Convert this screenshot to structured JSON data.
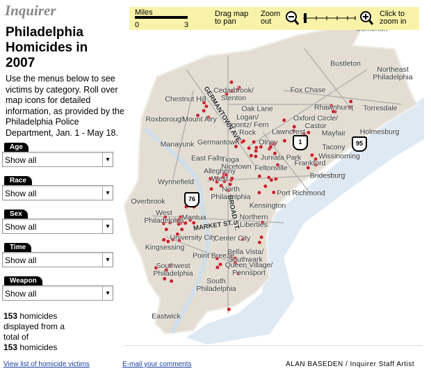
{
  "header": {
    "logo": "Inquirer",
    "title": "Philadelphia Homicides in 2007",
    "description": "Use the menus below to see victims by category. Roll over map icons for detailed information, as provided by the Philadelphia Police Department, Jan. 1 - May 18."
  },
  "filters": [
    {
      "label": "Age",
      "value": "Show all"
    },
    {
      "label": "Race",
      "value": "Show all"
    },
    {
      "label": "Sex",
      "value": "Show all"
    },
    {
      "label": "Time",
      "value": "Show all"
    },
    {
      "label": "Weapon",
      "value": "Show all"
    }
  ],
  "summary": {
    "displayed": 153,
    "middle_text": "homicides displayed from a total of",
    "total": 153,
    "end_text": "homicides"
  },
  "toolbar": {
    "scale_label": "Miles",
    "scale_min": 0,
    "scale_max": 3,
    "pan": "Drag map to pan",
    "zoom_out": "Zoom out",
    "zoom_in": "Click to zoom in"
  },
  "map": {
    "places": [
      "Somerton",
      "Bustleton",
      "Northeast Philadelphia",
      "Fox Chase",
      "Cedarbrook/ Stenton",
      "Chestnut Hill",
      "Rhawnhurst",
      "Torresdale",
      "Oak Lane",
      "Roxborough",
      "Mount Airy",
      "Logan/ Ogontz/ Fern Rock",
      "Oxford Circle/ Castor",
      "Lawncrest",
      "Mayfair",
      "Holmesburg",
      "Manayunk",
      "Germantown",
      "Olney",
      "Tacony",
      "East Falls",
      "Juniata Park",
      "Frankford",
      "Wissinoming",
      "Tioga",
      "Nicetown",
      "Feltonville",
      "Allegheny West",
      "Bridesburg",
      "Wynnefield",
      "North Philadelphia",
      "Port Richmond",
      "Overbrook",
      "Kensington",
      "West Philadelphia",
      "Mantua",
      "Northern Liberties",
      "University City",
      "Center City",
      "Kingsessing",
      "Point Breeze",
      "Bella Vista/ Southwark",
      "Queen Village/ Pennsport",
      "Southwest Philadelphia",
      "South Philadelphia",
      "Eastwick"
    ],
    "roads": [
      "GERMANTOWN AVE.",
      "BROAD ST.",
      "MARKET ST."
    ],
    "shields": [
      "1",
      "95",
      "76"
    ]
  },
  "footer": {
    "victims_link": "View list of homicide victims",
    "email_link": "E-mail your comments",
    "credit": "ALAN BASEDEN / Inquirer Staff Artist"
  }
}
